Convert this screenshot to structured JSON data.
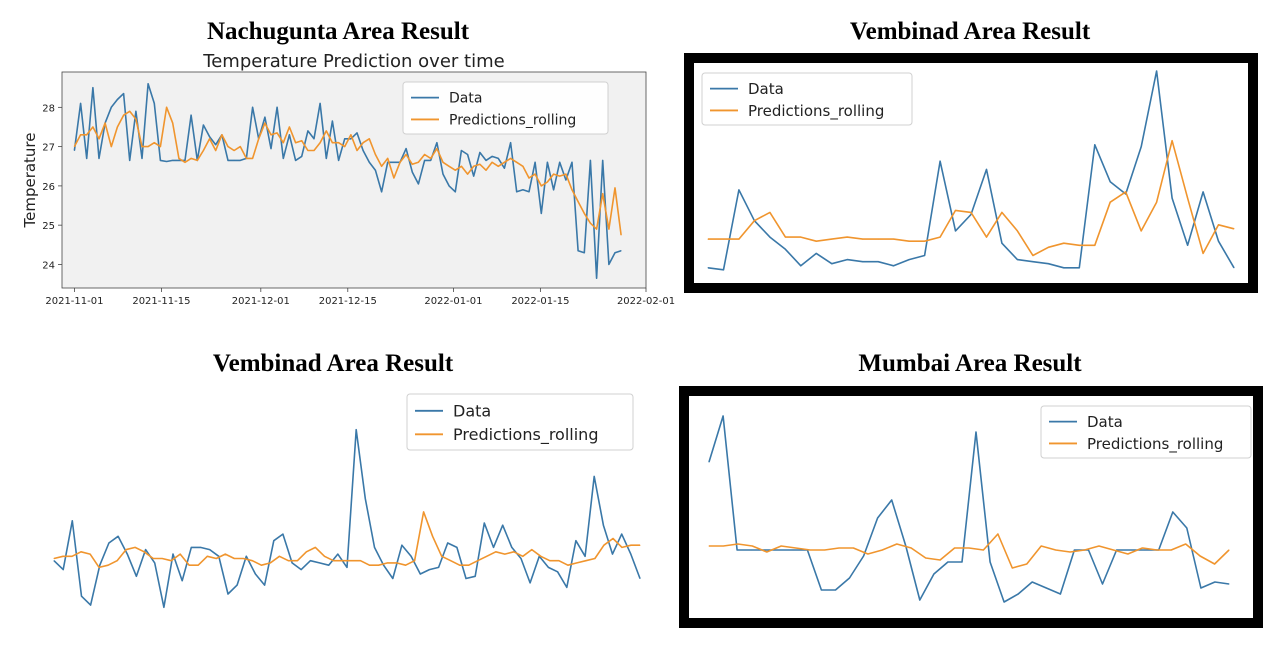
{
  "headings": {
    "top_left": "Nachugunta Area Result",
    "top_right": "Vembinad Area Result",
    "bottom_left": "Vembinad Area Result",
    "bottom_right": "Mumbai Area Result"
  },
  "colors": {
    "data": "#3a78a8",
    "predictions": "#f0952e"
  },
  "chart_data": [
    {
      "type": "line",
      "title": "Temperature Prediction over time",
      "xlabel": "",
      "ylabel": "Temperature",
      "x_start": "2021-11-01",
      "x_end": "2022-01-28",
      "xlim": [
        "2021-10-30",
        "2022-02-01"
      ],
      "ylim": [
        23.4,
        28.9
      ],
      "x_ticks": [
        "2021-11-01",
        "2021-11-15",
        "2021-12-01",
        "2021-12-15",
        "2022-01-01",
        "2022-01-15",
        "2022-02-01"
      ],
      "y_ticks": [
        "24",
        "25",
        "26",
        "27",
        "28"
      ],
      "legend": {
        "position": "upper-right",
        "entries": [
          "Data",
          "Predictions_rolling"
        ]
      },
      "series": [
        {
          "name": "Data",
          "values": [
            26.9,
            28.1,
            26.7,
            28.5,
            26.7,
            27.6,
            28.0,
            28.2,
            28.35,
            26.65,
            27.9,
            26.7,
            28.6,
            28.1,
            26.65,
            26.62,
            26.65,
            26.65,
            26.65,
            27.8,
            26.65,
            27.55,
            27.25,
            27.05,
            27.3,
            26.65,
            26.65,
            26.65,
            26.7,
            28.0,
            27.2,
            27.75,
            26.95,
            28.0,
            26.7,
            27.3,
            26.65,
            26.75,
            27.4,
            27.2,
            28.1,
            26.7,
            27.65,
            26.65,
            27.2,
            27.2,
            27.35,
            26.9,
            26.6,
            26.4,
            25.85,
            26.6,
            26.6,
            26.6,
            26.95,
            26.35,
            26.05,
            26.65,
            26.65,
            27.1,
            26.3,
            26.0,
            25.85,
            26.9,
            26.8,
            26.25,
            26.85,
            26.65,
            26.75,
            26.7,
            26.45,
            27.1,
            25.85,
            25.9,
            25.85,
            26.6,
            25.3,
            26.6,
            25.9,
            26.6,
            26.15,
            26.6,
            24.35,
            24.3,
            26.65,
            23.65,
            26.65,
            24.0,
            24.3,
            24.35
          ]
        },
        {
          "name": "Predictions_rolling",
          "values": [
            27.0,
            27.3,
            27.3,
            27.5,
            27.2,
            27.6,
            27.0,
            27.5,
            27.8,
            27.9,
            27.7,
            27.0,
            27.0,
            27.1,
            27.0,
            28.0,
            27.6,
            26.7,
            26.6,
            26.7,
            26.65,
            26.9,
            27.2,
            26.9,
            27.3,
            27.0,
            26.9,
            27.0,
            26.7,
            26.7,
            27.2,
            27.6,
            27.3,
            27.35,
            27.1,
            27.5,
            27.1,
            27.15,
            26.9,
            26.9,
            27.1,
            27.4,
            27.1,
            27.1,
            27.0,
            27.3,
            26.9,
            27.1,
            27.2,
            26.8,
            26.5,
            26.7,
            26.2,
            26.6,
            26.8,
            26.55,
            26.6,
            26.8,
            26.7,
            26.95,
            26.6,
            26.5,
            26.4,
            26.5,
            26.3,
            26.5,
            26.55,
            26.4,
            26.6,
            26.5,
            26.6,
            26.7,
            26.6,
            26.5,
            26.2,
            26.3,
            26.0,
            26.1,
            26.3,
            26.25,
            26.3,
            25.9,
            25.6,
            25.3,
            25.05,
            24.9,
            25.8,
            24.9,
            25.95,
            24.75
          ]
        }
      ]
    },
    {
      "type": "line",
      "title": "",
      "ylim": [
        0,
        100
      ],
      "legend": {
        "position": "upper-left",
        "entries": [
          "Data",
          "Predictions_rolling"
        ]
      },
      "series": [
        {
          "name": "Data",
          "values": [
            4,
            3,
            42,
            27,
            19,
            13,
            5,
            11,
            6,
            8,
            7,
            7,
            5,
            8,
            10,
            56,
            22,
            30,
            52,
            16,
            8,
            7,
            6,
            4,
            4,
            64,
            46,
            40,
            63,
            100,
            38,
            15,
            41,
            17,
            4
          ]
        },
        {
          "name": "Predictions_rolling",
          "values": [
            18,
            18,
            18,
            27,
            31,
            19,
            19,
            17,
            18,
            19,
            18,
            18,
            18,
            17,
            17,
            19,
            32,
            31,
            19,
            31,
            22,
            10,
            14,
            16,
            15,
            15,
            36,
            41,
            22,
            36,
            66,
            38,
            11,
            25,
            23
          ]
        }
      ]
    },
    {
      "type": "line",
      "title": "",
      "ylim": [
        0,
        100
      ],
      "legend": {
        "position": "upper-right",
        "entries": [
          "Data",
          "Predictions_rolling"
        ]
      },
      "series": [
        {
          "name": "Data",
          "values": [
            24,
            20,
            42,
            8,
            4,
            22,
            32,
            35,
            27,
            17,
            29,
            23,
            3,
            27,
            15,
            30,
            30,
            29,
            26,
            9,
            13,
            26,
            18,
            13,
            33,
            36,
            23,
            20,
            24,
            23,
            22,
            27,
            21,
            83,
            52,
            30,
            22,
            16,
            31,
            26,
            18,
            20,
            21,
            32,
            30,
            16,
            17,
            41,
            30,
            40,
            30,
            25,
            14,
            26,
            21,
            19,
            12,
            33,
            26,
            62,
            40,
            27,
            36,
            27,
            16
          ]
        },
        {
          "name": "Predictions_rolling",
          "values": [
            25,
            26,
            26,
            28,
            27,
            21,
            22,
            24,
            29,
            30,
            28,
            25,
            25,
            24,
            27,
            22,
            22,
            26,
            25,
            27,
            25,
            25,
            24,
            22,
            23,
            26,
            24,
            24,
            28,
            30,
            26,
            24,
            24,
            24,
            24,
            22,
            22,
            23,
            23,
            22,
            24,
            46,
            35,
            26,
            24,
            22,
            22,
            24,
            26,
            28,
            27,
            28,
            26,
            29,
            26,
            24,
            24,
            22,
            23,
            24,
            25,
            31,
            34,
            30,
            31,
            31
          ]
        }
      ]
    },
    {
      "type": "line",
      "title": "",
      "ylim": [
        0,
        100
      ],
      "legend": {
        "position": "upper-right",
        "entries": [
          "Data",
          "Predictions_rolling"
        ]
      },
      "series": [
        {
          "name": "Data",
          "values": [
            73,
            96,
            29,
            29,
            29,
            29,
            29,
            29,
            9,
            9,
            15,
            26,
            45,
            54,
            31,
            4,
            17,
            23,
            23,
            88,
            23,
            3,
            7,
            13,
            10,
            7,
            29,
            29,
            12,
            29,
            29,
            29,
            29,
            48,
            40,
            10,
            13,
            12
          ]
        },
        {
          "name": "Predictions_rolling",
          "values": [
            31,
            31,
            32,
            31,
            28,
            31,
            30,
            29,
            29,
            30,
            30,
            27,
            29,
            32,
            30,
            25,
            24,
            30,
            30,
            29,
            37,
            20,
            22,
            31,
            29,
            28,
            29,
            31,
            29,
            27,
            30,
            29,
            29,
            32,
            26,
            22,
            29
          ]
        }
      ]
    }
  ]
}
